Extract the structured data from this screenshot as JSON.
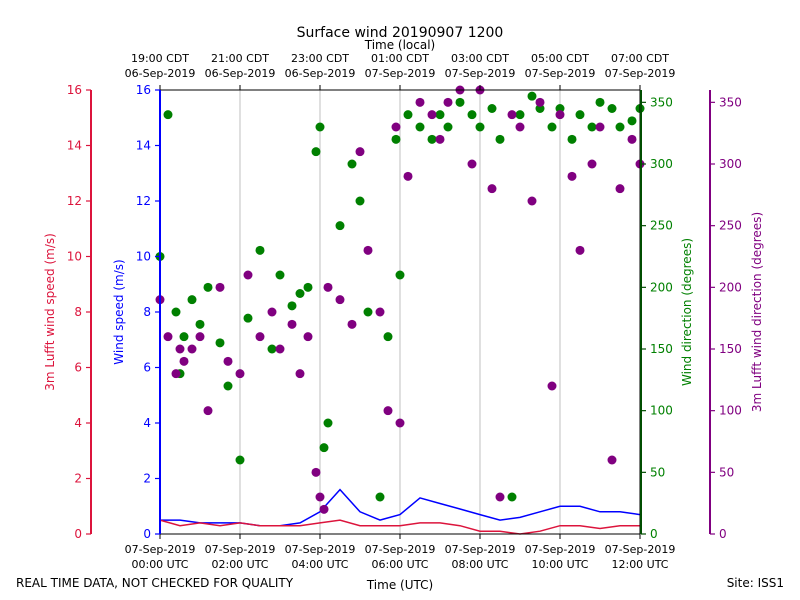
{
  "chart_data": {
    "type": "scatter",
    "title": "Surface wind 20190907 1200",
    "top_xlabel": "Time (local)",
    "xlabel": "Time (UTC)",
    "footer_left": "REAL TIME DATA, NOT CHECKED FOR QUALITY",
    "footer_right": "Site: ISS1",
    "x_range_hours": [
      0,
      12
    ],
    "x_ticks_utc": [
      {
        "h": 0,
        "l1": "07-Sep-2019",
        "l2": "00:00 UTC"
      },
      {
        "h": 2,
        "l1": "07-Sep-2019",
        "l2": "02:00 UTC"
      },
      {
        "h": 4,
        "l1": "07-Sep-2019",
        "l2": "04:00 UTC"
      },
      {
        "h": 6,
        "l1": "07-Sep-2019",
        "l2": "06:00 UTC"
      },
      {
        "h": 8,
        "l1": "07-Sep-2019",
        "l2": "08:00 UTC"
      },
      {
        "h": 10,
        "l1": "07-Sep-2019",
        "l2": "10:00 UTC"
      },
      {
        "h": 12,
        "l1": "07-Sep-2019",
        "l2": "12:00 UTC"
      }
    ],
    "x_ticks_local": [
      {
        "h": 0,
        "l1": "19:00 CDT",
        "l2": "06-Sep-2019"
      },
      {
        "h": 2,
        "l1": "21:00 CDT",
        "l2": "06-Sep-2019"
      },
      {
        "h": 4,
        "l1": "23:00 CDT",
        "l2": "06-Sep-2019"
      },
      {
        "h": 6,
        "l1": "01:00 CDT",
        "l2": "07-Sep-2019"
      },
      {
        "h": 8,
        "l1": "03:00 CDT",
        "l2": "07-Sep-2019"
      },
      {
        "h": 10,
        "l1": "05:00 CDT",
        "l2": "07-Sep-2019"
      },
      {
        "h": 12,
        "l1": "07:00 CDT",
        "l2": "07-Sep-2019"
      }
    ],
    "axes": {
      "lufft_speed": {
        "label": "3m Lufft wind speed (m/s)",
        "range": [
          0,
          16
        ],
        "ticks": [
          0,
          2,
          4,
          6,
          8,
          10,
          12,
          14,
          16
        ],
        "color": "#dc143c"
      },
      "speed": {
        "label": "Wind speed (m/s)",
        "range": [
          0,
          16
        ],
        "ticks": [
          0,
          2,
          4,
          6,
          8,
          10,
          12,
          14,
          16
        ],
        "color": "#0000ff"
      },
      "direction": {
        "label": "Wind direction (degrees)",
        "range": [
          0,
          360
        ],
        "ticks": [
          0,
          50,
          100,
          150,
          200,
          250,
          300,
          350
        ],
        "color": "#008000"
      },
      "lufft_direction": {
        "label": "3m Lufft wind direction (degrees)",
        "range": [
          0,
          360
        ],
        "ticks": [
          0,
          50,
          100,
          150,
          200,
          250,
          300,
          350
        ],
        "color": "#800080"
      }
    },
    "series": [
      {
        "name": "Wind speed",
        "axis": "speed",
        "kind": "line",
        "color": "#0000ff",
        "x": [
          0,
          0.5,
          1,
          1.5,
          2,
          2.5,
          3,
          3.5,
          4,
          4.5,
          5,
          5.5,
          6,
          6.5,
          7,
          7.5,
          8,
          8.5,
          9,
          9.5,
          10,
          10.5,
          11,
          11.5,
          12
        ],
        "y": [
          0.5,
          0.5,
          0.4,
          0.4,
          0.4,
          0.3,
          0.3,
          0.4,
          0.8,
          1.6,
          0.8,
          0.5,
          0.7,
          1.3,
          1.1,
          0.9,
          0.7,
          0.5,
          0.6,
          0.8,
          1.0,
          1.0,
          0.8,
          0.8,
          0.7
        ]
      },
      {
        "name": "3m Lufft wind speed",
        "axis": "lufft_speed",
        "kind": "line",
        "color": "#dc143c",
        "x": [
          0,
          0.5,
          1,
          1.5,
          2,
          2.5,
          3,
          3.5,
          4,
          4.5,
          5,
          5.5,
          6,
          6.5,
          7,
          7.5,
          8,
          8.5,
          9,
          9.5,
          10,
          10.5,
          11,
          11.5,
          12
        ],
        "y": [
          0.5,
          0.3,
          0.4,
          0.3,
          0.4,
          0.3,
          0.3,
          0.3,
          0.4,
          0.5,
          0.3,
          0.3,
          0.3,
          0.4,
          0.4,
          0.3,
          0.1,
          0.1,
          0.0,
          0.1,
          0.3,
          0.3,
          0.2,
          0.3,
          0.3
        ]
      },
      {
        "name": "Wind direction",
        "axis": "direction",
        "kind": "scatter",
        "color": "#008000",
        "x": [
          0.0,
          0.2,
          0.4,
          0.5,
          0.6,
          0.8,
          1.0,
          1.2,
          1.5,
          1.7,
          2.0,
          2.2,
          2.5,
          2.8,
          3.0,
          3.3,
          3.5,
          3.7,
          3.9,
          4.0,
          4.1,
          4.2,
          4.5,
          4.8,
          5.0,
          5.2,
          5.5,
          5.7,
          5.9,
          6.0,
          6.2,
          6.5,
          6.8,
          7.0,
          7.2,
          7.5,
          7.8,
          8.0,
          8.3,
          8.5,
          8.8,
          9.0,
          9.3,
          9.5,
          9.8,
          10.0,
          10.3,
          10.5,
          10.8,
          11.0,
          11.3,
          11.5,
          11.8,
          12.0
        ],
        "y": [
          225,
          340,
          180,
          130,
          160,
          190,
          170,
          200,
          155,
          120,
          60,
          175,
          230,
          150,
          210,
          185,
          195,
          200,
          310,
          330,
          70,
          90,
          250,
          300,
          270,
          180,
          30,
          160,
          320,
          210,
          340,
          330,
          320,
          340,
          330,
          350,
          340,
          330,
          345,
          320,
          30,
          340,
          355,
          345,
          330,
          345,
          320,
          340,
          330,
          350,
          345,
          330,
          335,
          345
        ]
      },
      {
        "name": "3m Lufft wind direction",
        "axis": "lufft_direction",
        "kind": "scatter",
        "color": "#800080",
        "x": [
          0.0,
          0.2,
          0.4,
          0.5,
          0.6,
          0.8,
          1.0,
          1.2,
          1.5,
          1.7,
          2.0,
          2.2,
          2.5,
          2.8,
          3.0,
          3.3,
          3.5,
          3.7,
          3.9,
          4.0,
          4.1,
          4.2,
          4.5,
          4.8,
          5.0,
          5.2,
          5.5,
          5.7,
          5.9,
          6.0,
          6.2,
          6.5,
          6.8,
          7.0,
          7.2,
          7.5,
          7.8,
          8.0,
          8.3,
          8.5,
          8.8,
          9.0,
          9.3,
          9.5,
          9.8,
          10.0,
          10.3,
          10.5,
          10.8,
          11.0,
          11.3,
          11.5,
          11.8,
          12.0
        ],
        "y": [
          190,
          160,
          130,
          150,
          140,
          150,
          160,
          100,
          200,
          140,
          130,
          210,
          160,
          180,
          150,
          170,
          130,
          160,
          50,
          30,
          20,
          200,
          190,
          170,
          310,
          230,
          180,
          100,
          330,
          90,
          290,
          350,
          340,
          320,
          350,
          360,
          300,
          360,
          280,
          30,
          340,
          330,
          270,
          350,
          120,
          340,
          290,
          230,
          300,
          330,
          60,
          280,
          320,
          300
        ]
      }
    ]
  }
}
